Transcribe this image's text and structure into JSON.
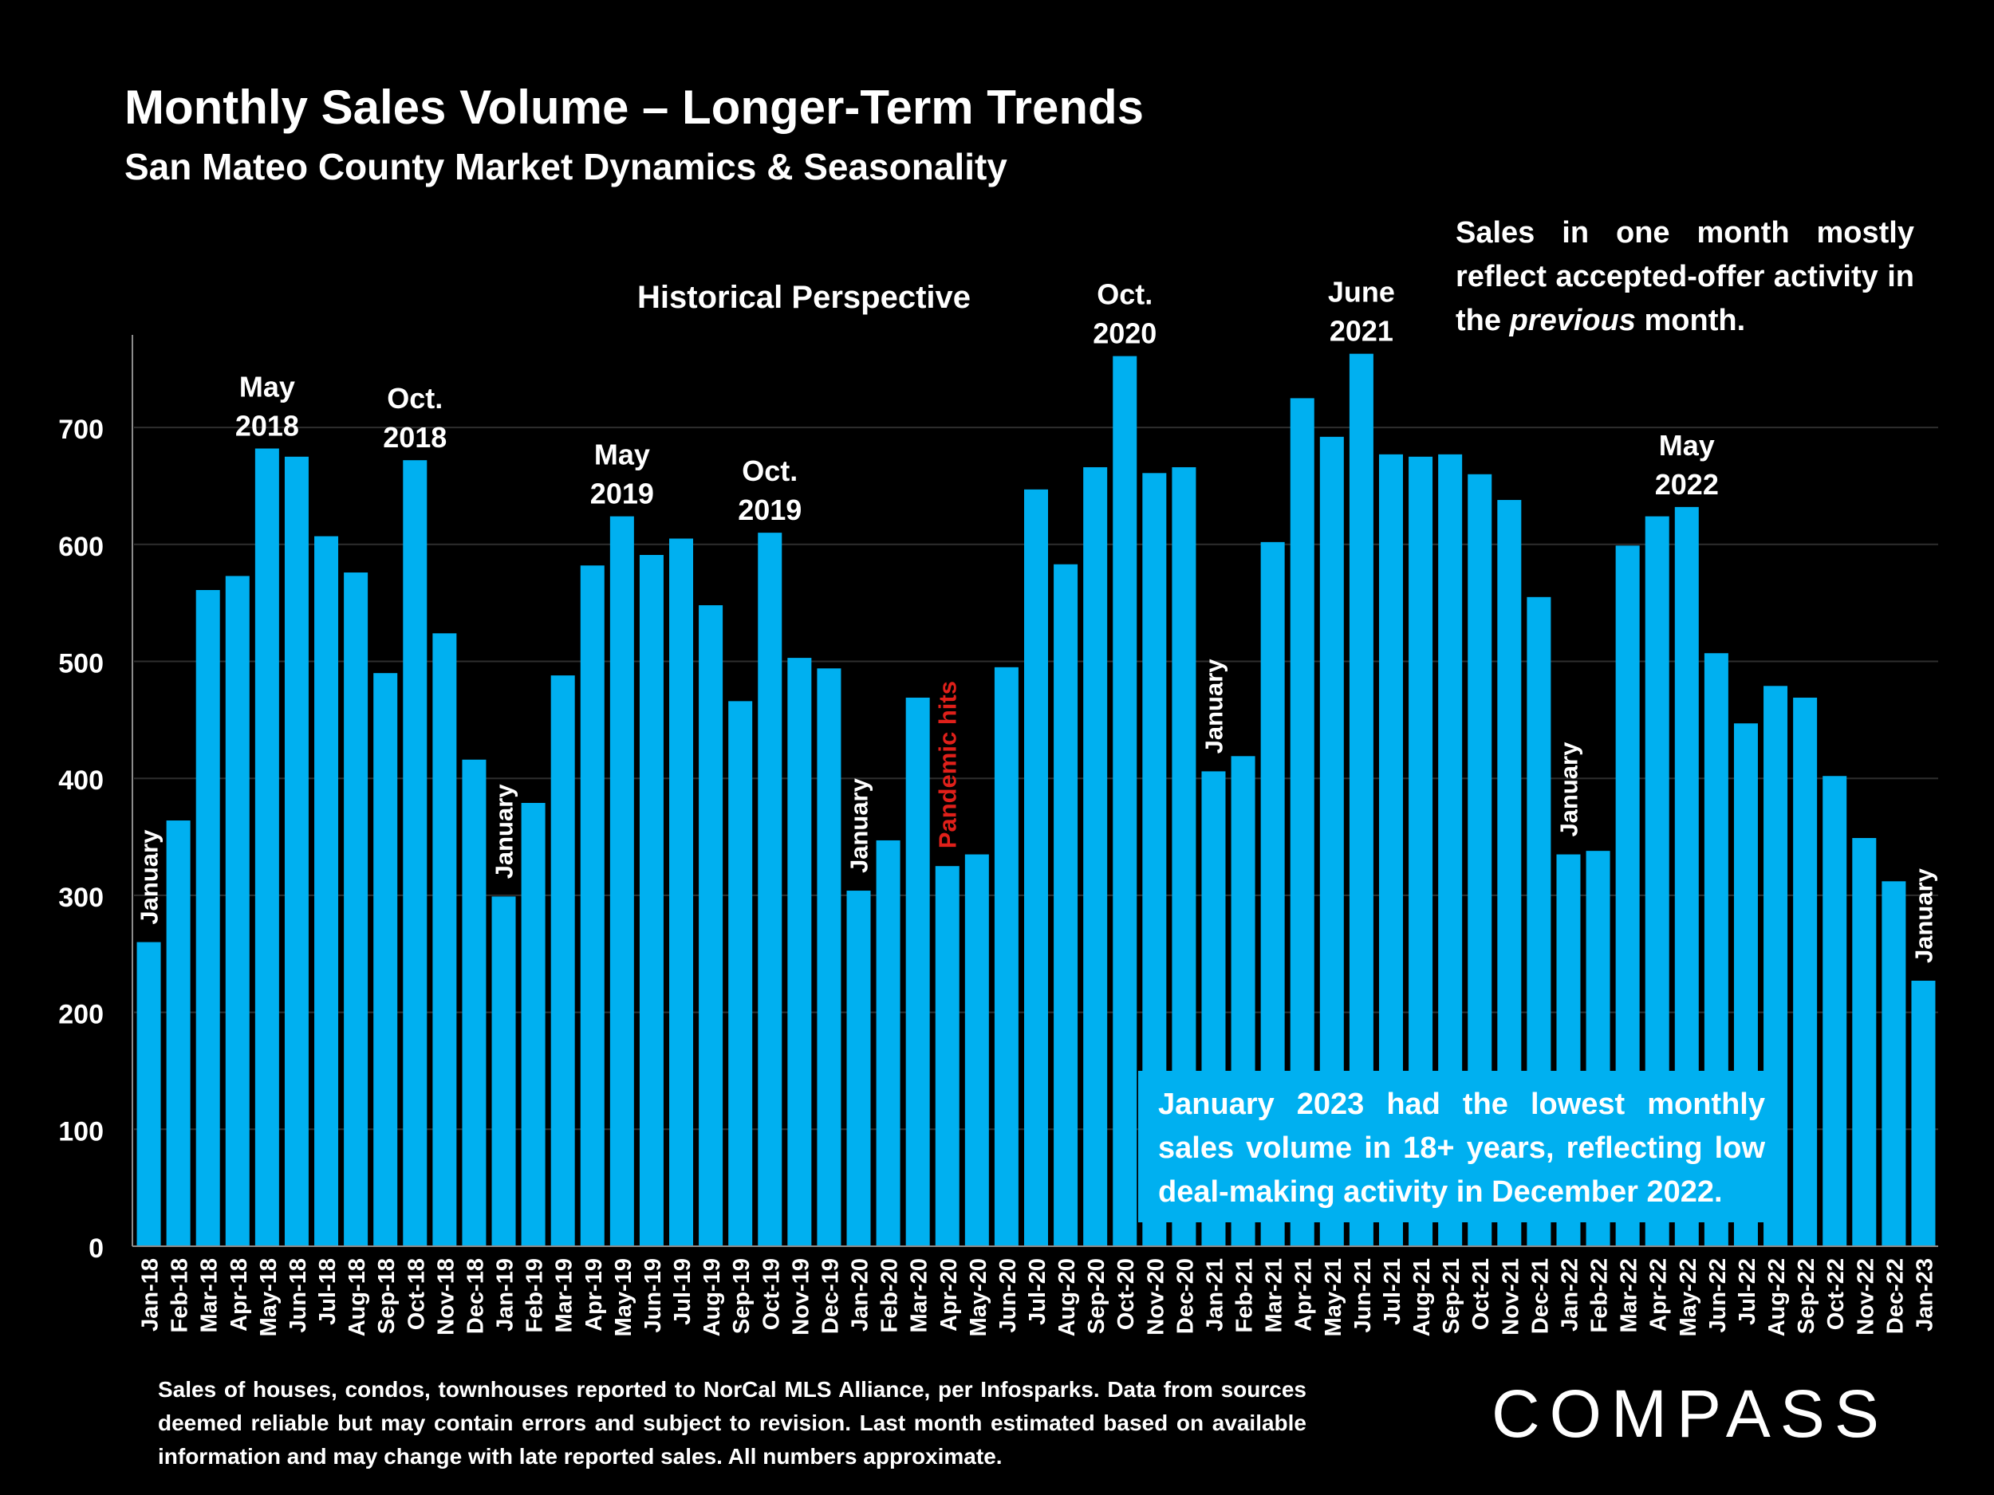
{
  "title": "Monthly Sales Volume – Longer-Term Trends",
  "subtitle": "San Mateo County Market Dynamics & Seasonality",
  "note": "Sales in one month mostly reflect accepted-offer activity in the previous month.",
  "callout": "January 2023 had the lowest monthly sales volume in 18+ years, reflecting low deal-making activity in December 2022.",
  "footer": "Sales of houses, condos, townhouses reported to NorCal MLS Alliance, per Infosparks. Data from sources deemed reliable but may contain errors and subject to revision. Last month estimated based on available information and may change with late reported sales. All numbers approximate.",
  "logo": "COMPASS",
  "colors": {
    "bar": "#00b0f0",
    "background": "#000000",
    "highlight": "#e0201a",
    "text": "#ffffff"
  },
  "chart_data": {
    "type": "bar",
    "categories": [
      "Jan-18",
      "Feb-18",
      "Mar-18",
      "Apr-18",
      "May-18",
      "Jun-18",
      "Jul-18",
      "Aug-18",
      "Sep-18",
      "Oct-18",
      "Nov-18",
      "Dec-18",
      "Jan-19",
      "Feb-19",
      "Mar-19",
      "Apr-19",
      "May-19",
      "Jun-19",
      "Jul-19",
      "Aug-19",
      "Sep-19",
      "Oct-19",
      "Nov-19",
      "Dec-19",
      "Jan-20",
      "Feb-20",
      "Mar-20",
      "Apr-20",
      "May-20",
      "Jun-20",
      "Jul-20",
      "Aug-20",
      "Sep-20",
      "Oct-20",
      "Nov-20",
      "Dec-20",
      "Jan-21",
      "Feb-21",
      "Mar-21",
      "Apr-21",
      "May-21",
      "Jun-21",
      "Jul-21",
      "Aug-21",
      "Sep-21",
      "Oct-21",
      "Nov-21",
      "Dec-21",
      "Jan-22",
      "Feb-22",
      "Mar-22",
      "Apr-22",
      "May-22",
      "Jun-22",
      "Jul-22",
      "Aug-22",
      "Sep-22",
      "Oct-22",
      "Nov-22",
      "Dec-22",
      "Jan-23"
    ],
    "values": [
      260,
      364,
      561,
      573,
      682,
      675,
      607,
      576,
      490,
      672,
      524,
      416,
      299,
      379,
      488,
      582,
      624,
      591,
      605,
      548,
      466,
      610,
      503,
      494,
      304,
      347,
      469,
      325,
      335,
      495,
      647,
      583,
      666,
      761,
      661,
      666,
      406,
      419,
      602,
      725,
      692,
      763,
      677,
      675,
      677,
      660,
      638,
      555,
      335,
      338,
      599,
      624,
      632,
      507,
      447,
      479,
      469,
      402,
      349,
      312,
      227
    ],
    "ylim": [
      0,
      780
    ],
    "yticks": [
      0,
      100,
      200,
      300,
      400,
      500,
      600,
      700
    ],
    "grid": true,
    "chart_title": "Historical Perspective",
    "peak_labels": [
      {
        "index": 4,
        "line1": "May",
        "line2": "2018"
      },
      {
        "index": 9,
        "line1": "Oct.",
        "line2": "2018"
      },
      {
        "index": 16,
        "line1": "May",
        "line2": "2019"
      },
      {
        "index": 21,
        "line1": "Oct.",
        "line2": "2019"
      },
      {
        "index": 33,
        "line1": "Oct.",
        "line2": "2020"
      },
      {
        "index": 41,
        "line1": "June",
        "line2": "2021"
      },
      {
        "index": 52,
        "line1": "May",
        "line2": "2022"
      }
    ],
    "vertical_labels": [
      {
        "index": 0,
        "text": "January",
        "color": "#ffffff"
      },
      {
        "index": 12,
        "text": "January",
        "color": "#ffffff"
      },
      {
        "index": 24,
        "text": "January",
        "color": "#ffffff"
      },
      {
        "index": 27,
        "text": "Pandemic hits",
        "color": "#e0201a"
      },
      {
        "index": 36,
        "text": "January",
        "color": "#ffffff"
      },
      {
        "index": 48,
        "text": "January",
        "color": "#ffffff"
      },
      {
        "index": 60,
        "text": "January",
        "color": "#ffffff"
      }
    ]
  }
}
